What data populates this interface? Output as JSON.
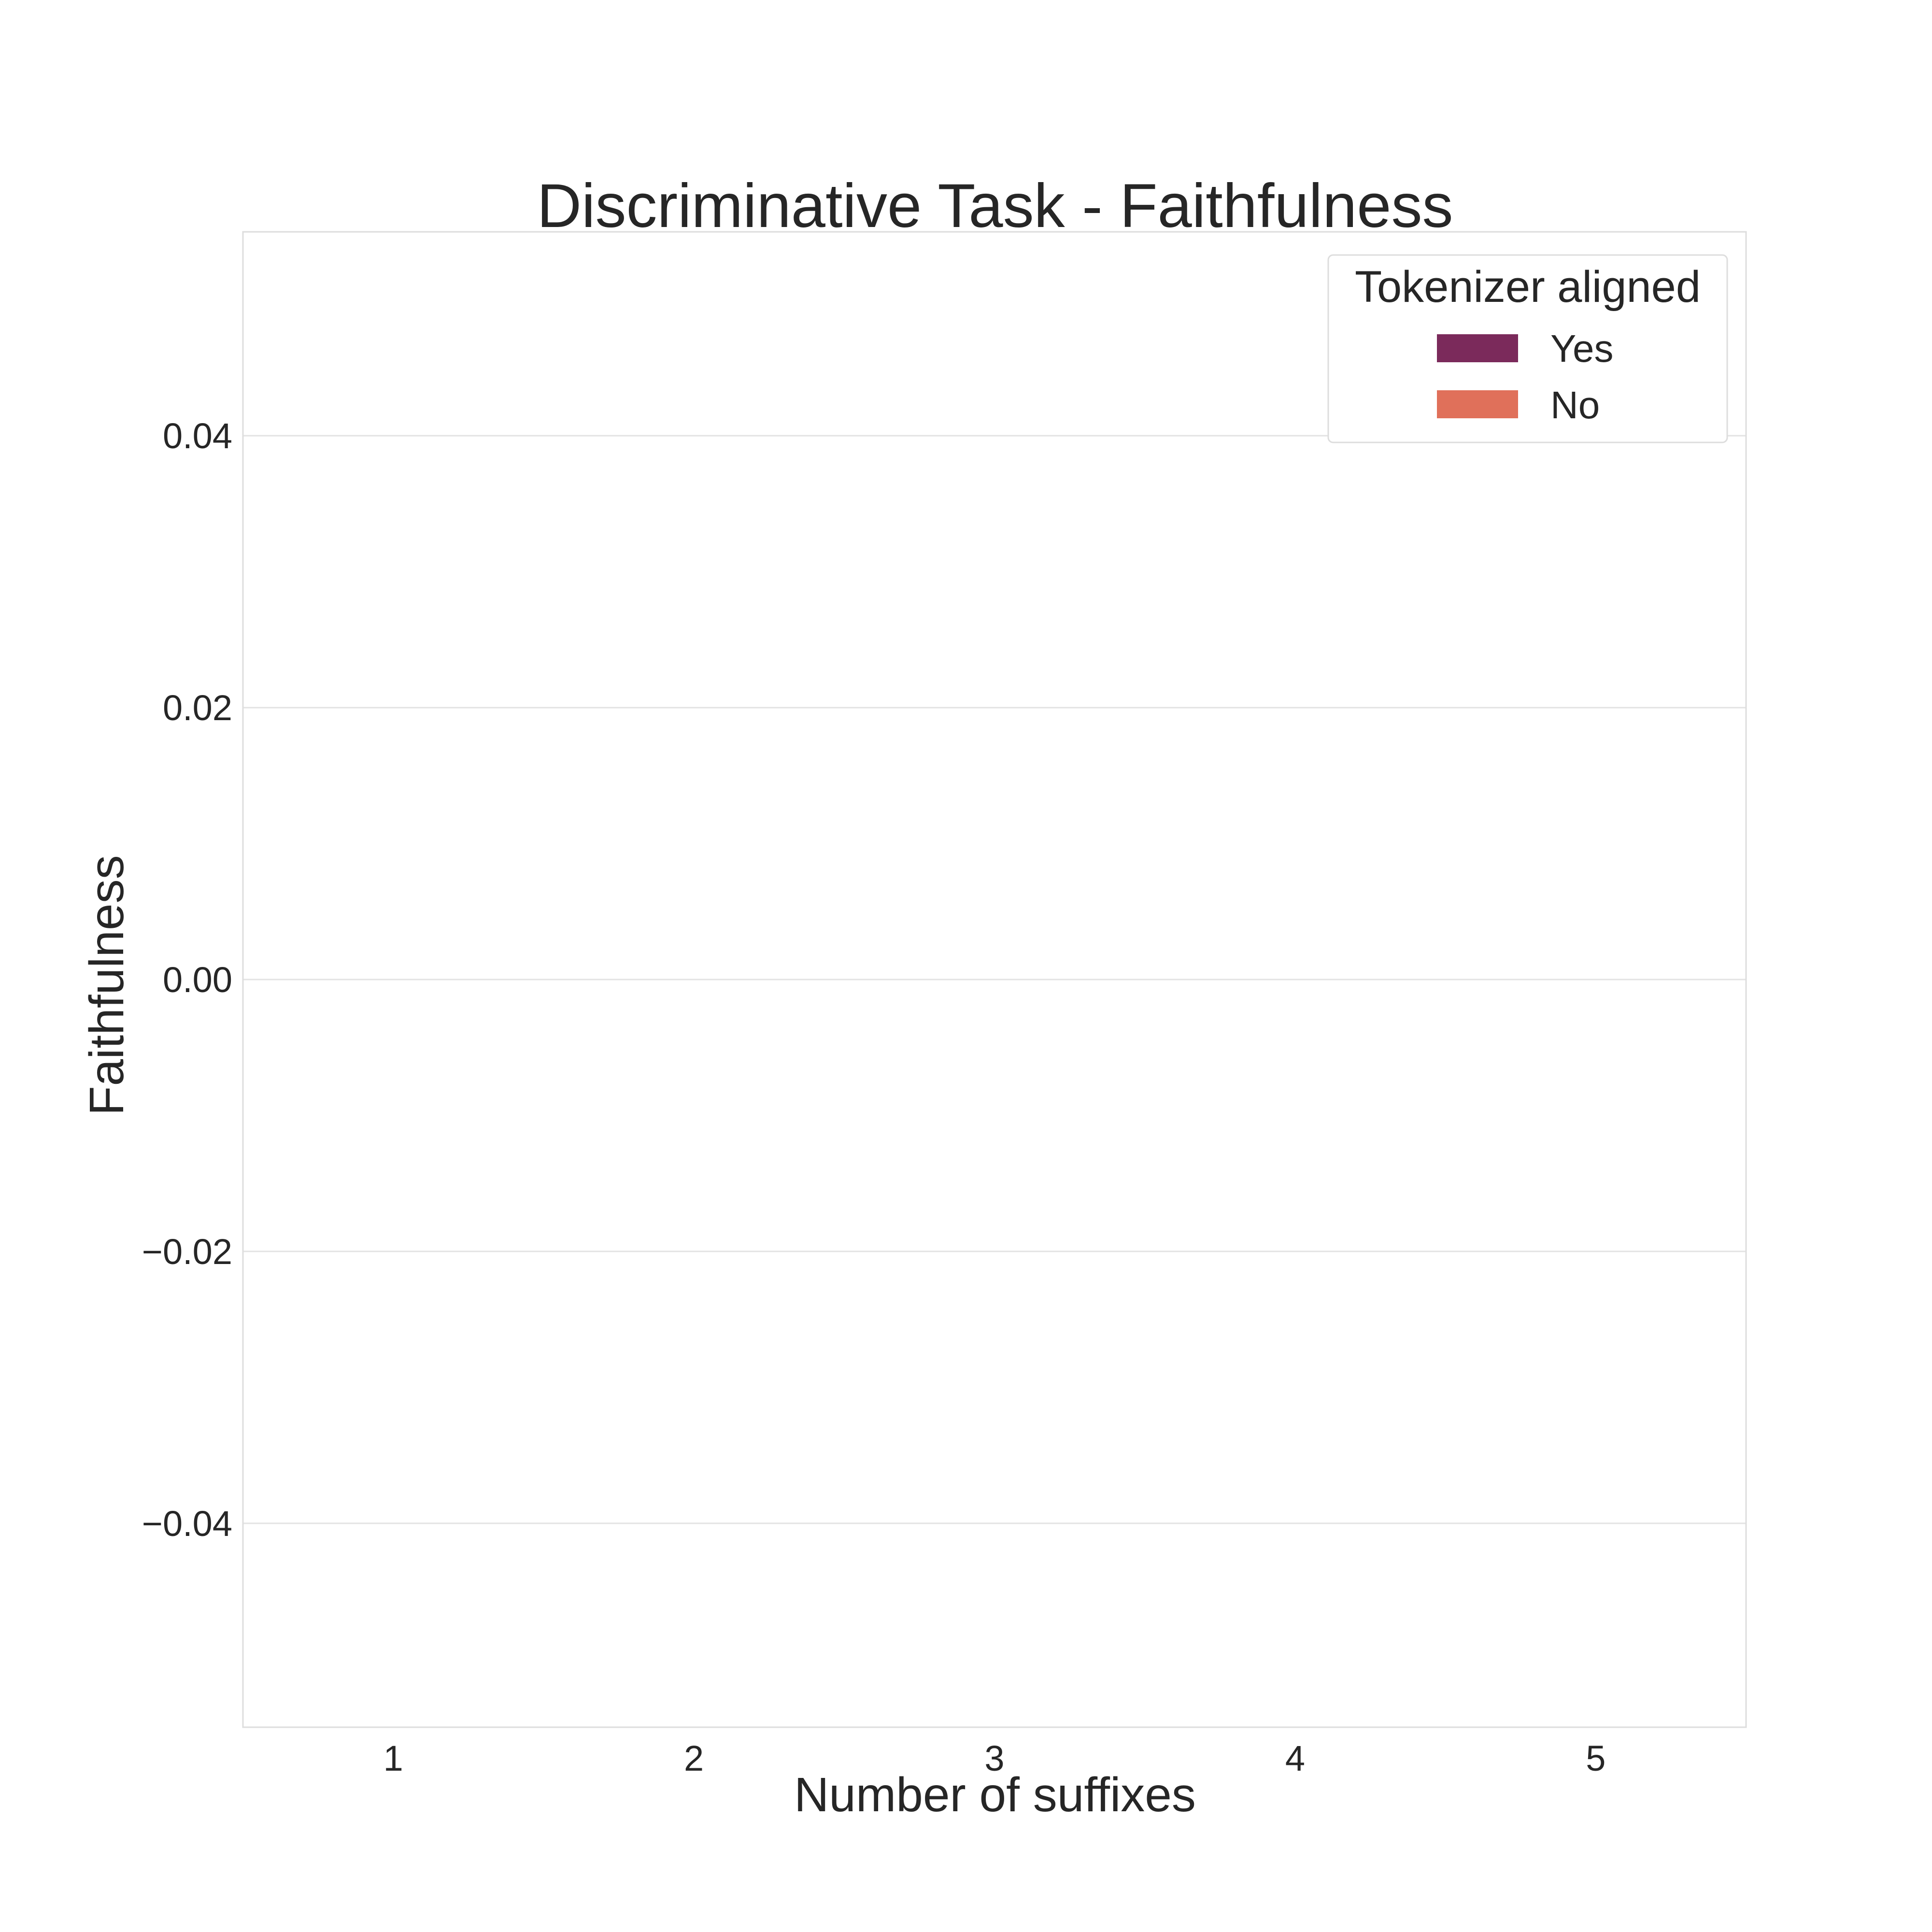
{
  "chart_data": {
    "type": "bar",
    "title": "Discriminative Task - Faithfulness",
    "xlabel": "Number of suffixes",
    "ylabel": "Faithfulness",
    "categories": [
      "1",
      "2",
      "3",
      "4",
      "5"
    ],
    "series": [
      {
        "name": "Yes",
        "color": "#7b2a5b",
        "values": [
          0,
          0,
          0,
          0,
          0
        ]
      },
      {
        "name": "No",
        "color": "#e0705a",
        "values": [
          0,
          0,
          0,
          0,
          0
        ]
      }
    ],
    "ylim": [
      -0.055,
      0.055
    ],
    "yticks": [
      {
        "value": 0.04,
        "label": "0.04"
      },
      {
        "value": 0.02,
        "label": "0.02"
      },
      {
        "value": 0.0,
        "label": "0.00"
      },
      {
        "value": -0.02,
        "label": "−0.02"
      },
      {
        "value": -0.04,
        "label": "−0.04"
      }
    ],
    "grid": true,
    "legend": {
      "title": "Tokenizer aligned",
      "placement": "top-right"
    }
  }
}
